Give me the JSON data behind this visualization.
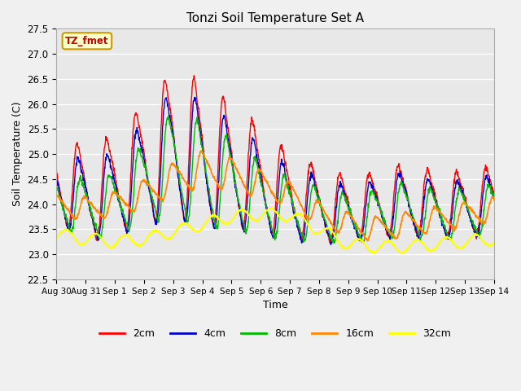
{
  "title": "Tonzi Soil Temperature Set A",
  "xlabel": "Time",
  "ylabel": "Soil Temperature (C)",
  "ylim": [
    22.5,
    27.5
  ],
  "tick_labels": [
    "Aug 30",
    "Aug 31",
    "Sep 1",
    "Sep 2",
    "Sep 3",
    "Sep 4",
    "Sep 5",
    "Sep 6",
    "Sep 7",
    "Sep 8",
    "Sep 9",
    "Sep 10",
    "Sep 11",
    "Sep 12",
    "Sep 13",
    "Sep 14"
  ],
  "annotation_text": "TZ_fmet",
  "annotation_bg": "#ffffcc",
  "annotation_border": "#cc9900",
  "annotation_text_color": "#cc0000",
  "colors": {
    "2cm": "#ff0000",
    "4cm": "#0000cc",
    "8cm": "#00bb00",
    "16cm": "#ff8800",
    "32cm": "#ffff00"
  },
  "bg_color": "#e8e8e8",
  "grid_color": "#ffffff",
  "fig_bg": "#f0f0f0"
}
